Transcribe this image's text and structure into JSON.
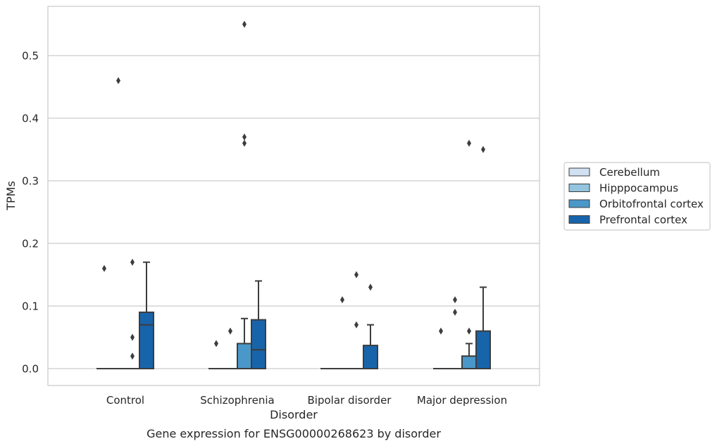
{
  "chart_data": {
    "type": "box",
    "caption": "Gene expression for ENSG00000268623 by disorder",
    "xlabel": "Disorder",
    "ylabel": "TPMs",
    "ylim": [
      -0.028,
      0.58
    ],
    "yticks": [
      0.0,
      0.1,
      0.2,
      0.3,
      0.4,
      0.5
    ],
    "ytick_labels": [
      "0.0",
      "0.1",
      "0.2",
      "0.3",
      "0.4",
      "0.5"
    ],
    "grid": "horizontal",
    "legend_position": "right",
    "categories": [
      "Control",
      "Schizophrenia",
      "Bipolar disorder",
      "Major depression"
    ],
    "series": [
      {
        "name": "Cerebellum",
        "color": "#d0e1f2",
        "boxes": [
          {
            "q1": 0,
            "median": 0,
            "q3": 0,
            "whisker_low": 0,
            "whisker_high": 0,
            "outliers": [
              0.16
            ]
          },
          {
            "q1": 0,
            "median": 0,
            "q3": 0,
            "whisker_low": 0,
            "whisker_high": 0,
            "outliers": [
              0.04
            ]
          },
          {
            "q1": 0,
            "median": 0,
            "q3": 0,
            "whisker_low": 0,
            "whisker_high": 0,
            "outliers": []
          },
          {
            "q1": 0,
            "median": 0,
            "q3": 0,
            "whisker_low": 0,
            "whisker_high": 0,
            "outliers": [
              0.06
            ]
          }
        ]
      },
      {
        "name": "Hipppocampus",
        "color": "#94c4df",
        "boxes": [
          {
            "q1": 0,
            "median": 0,
            "q3": 0,
            "whisker_low": 0,
            "whisker_high": 0,
            "outliers": [
              0.46
            ]
          },
          {
            "q1": 0,
            "median": 0,
            "q3": 0,
            "whisker_low": 0,
            "whisker_high": 0,
            "outliers": [
              0.06
            ]
          },
          {
            "q1": 0,
            "median": 0,
            "q3": 0,
            "whisker_low": 0,
            "whisker_high": 0,
            "outliers": [
              0.11
            ]
          },
          {
            "q1": 0,
            "median": 0,
            "q3": 0,
            "whisker_low": 0,
            "whisker_high": 0,
            "outliers": [
              0.09,
              0.11
            ]
          }
        ]
      },
      {
        "name": "Orbitofrontal cortex",
        "color": "#4a98c9",
        "boxes": [
          {
            "q1": 0,
            "median": 0,
            "q3": 0,
            "whisker_low": 0,
            "whisker_high": 0,
            "outliers": [
              0.02,
              0.05,
              0.17
            ]
          },
          {
            "q1": 0,
            "median": 0,
            "q3": 0.04,
            "whisker_low": 0,
            "whisker_high": 0.08,
            "outliers": [
              0.36,
              0.37,
              0.55
            ]
          },
          {
            "q1": 0,
            "median": 0,
            "q3": 0,
            "whisker_low": 0,
            "whisker_high": 0,
            "outliers": [
              0.07,
              0.15
            ]
          },
          {
            "q1": 0,
            "median": 0,
            "q3": 0.02,
            "whisker_low": 0,
            "whisker_high": 0.04,
            "outliers": [
              0.06,
              0.36
            ]
          }
        ]
      },
      {
        "name": "Prefrontal cortex",
        "color": "#1764ab",
        "boxes": [
          {
            "q1": 0,
            "median": 0.07,
            "q3": 0.09,
            "whisker_low": 0,
            "whisker_high": 0.17,
            "outliers": []
          },
          {
            "q1": 0,
            "median": 0.03,
            "q3": 0.078,
            "whisker_low": 0,
            "whisker_high": 0.14,
            "outliers": []
          },
          {
            "q1": 0,
            "median": 0,
            "q3": 0.037,
            "whisker_low": 0,
            "whisker_high": 0.07,
            "outliers": [
              0.13
            ]
          },
          {
            "q1": 0,
            "median": 0,
            "q3": 0.06,
            "whisker_low": 0,
            "whisker_high": 0.13,
            "outliers": [
              0.35
            ]
          }
        ]
      }
    ]
  }
}
